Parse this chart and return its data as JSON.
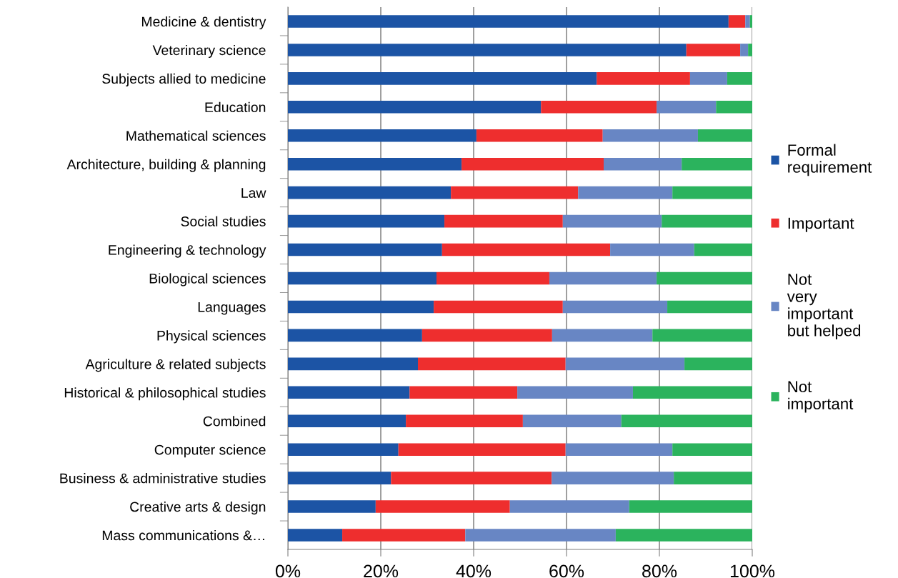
{
  "chart_data": {
    "type": "bar",
    "orientation": "horizontal",
    "stacked": true,
    "categories": [
      "Medicine & dentistry",
      "Veterinary science",
      "Subjects allied to medicine",
      "Education",
      "Mathematical sciences",
      "Architecture, building & planning",
      "Law",
      "Social studies",
      "Engineering & technology",
      "Biological sciences",
      "Languages",
      "Physical sciences",
      "Agriculture & related subjects",
      "Historical & philosophical studies",
      "Combined",
      "Computer science",
      "Business & administrative studies",
      "Creative arts & design",
      "Mass communications &…"
    ],
    "series": [
      {
        "name": "Formal\nrequirement",
        "color": "#1c54a5",
        "values": [
          94.9,
          85.8,
          66.5,
          54.5,
          40.6,
          37.4,
          35.1,
          33.7,
          33.2,
          32.0,
          31.4,
          28.9,
          28.0,
          26.2,
          25.4,
          23.8,
          22.2,
          18.9,
          11.7
        ]
      },
      {
        "name": "Important",
        "color": "#ee2e2e",
        "values": [
          3.6,
          11.6,
          20.1,
          24.9,
          27.2,
          30.6,
          27.4,
          25.5,
          36.2,
          24.3,
          27.8,
          28.0,
          31.8,
          23.2,
          25.2,
          36.0,
          34.6,
          28.9,
          26.5
        ]
      },
      {
        "name": "Not\nvery\nimportant\nbut helped",
        "color": "#6886c4",
        "values": [
          1.0,
          1.7,
          8.0,
          12.8,
          20.5,
          16.8,
          20.3,
          21.3,
          18.1,
          23.1,
          22.5,
          21.6,
          25.6,
          24.9,
          21.2,
          23.0,
          26.3,
          25.7,
          32.4
        ]
      },
      {
        "name": "Not\nimportant",
        "color": "#2bb35d",
        "values": [
          0.5,
          0.9,
          5.4,
          7.8,
          11.7,
          15.2,
          17.2,
          19.5,
          12.5,
          20.6,
          18.3,
          21.5,
          14.6,
          25.7,
          28.2,
          17.2,
          16.9,
          26.5,
          29.4
        ]
      }
    ],
    "xlim": [
      0,
      100
    ],
    "xticks": [
      {
        "value": 0,
        "label": "0%"
      },
      {
        "value": 20,
        "label": "20%"
      },
      {
        "value": 40,
        "label": "40%"
      },
      {
        "value": 60,
        "label": "60%"
      },
      {
        "value": 80,
        "label": "80%"
      },
      {
        "value": 100,
        "label": "100%"
      }
    ],
    "grid": "x",
    "legend": "right"
  }
}
